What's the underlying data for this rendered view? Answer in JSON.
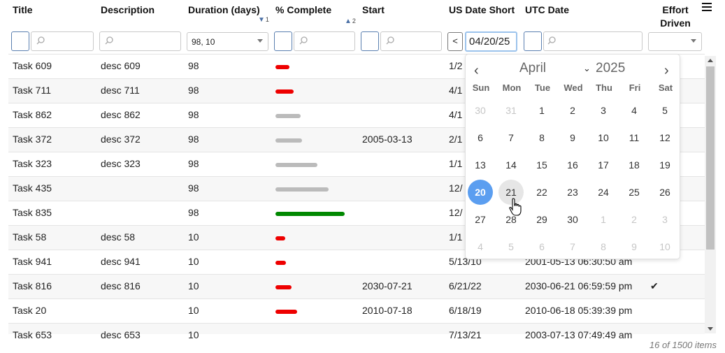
{
  "columns": [
    {
      "label": "Title"
    },
    {
      "label": "Description"
    },
    {
      "label": "Duration (days)"
    },
    {
      "label": "% Complete"
    },
    {
      "label": "Start"
    },
    {
      "label": "US Date Short"
    },
    {
      "label": "UTC Date"
    },
    {
      "label": "Effort Driven",
      "label_line1": "Effort",
      "label_line2": "Driven"
    }
  ],
  "sort": {
    "duration_index": "1",
    "complete_index": "2"
  },
  "filters": {
    "duration_value": "98, 10",
    "us_date_nav": "<",
    "us_date_value": "04/20/25"
  },
  "rows": [
    {
      "title": "Task 609",
      "desc": "desc 609",
      "duration": "98",
      "complete": 20,
      "complete_color": "#ee0000",
      "start": "",
      "us": "1/2",
      "utc": "",
      "effort": ""
    },
    {
      "title": "Task 711",
      "desc": "desc 711",
      "duration": "98",
      "complete": 26,
      "complete_color": "#ee0000",
      "start": "",
      "us": "4/1",
      "utc": "",
      "effort": ""
    },
    {
      "title": "Task 862",
      "desc": "desc 862",
      "duration": "98",
      "complete": 36,
      "complete_color": "#bbbbbb",
      "start": "",
      "us": "4/1",
      "utc": "",
      "effort": ""
    },
    {
      "title": "Task 372",
      "desc": "desc 372",
      "duration": "98",
      "complete": 38,
      "complete_color": "#bbbbbb",
      "start": "2005-03-13",
      "us": "2/1",
      "utc": "",
      "effort": ""
    },
    {
      "title": "Task 323",
      "desc": "desc 323",
      "duration": "98",
      "complete": 60,
      "complete_color": "#bbbbbb",
      "start": "",
      "us": "1/1",
      "utc": "",
      "effort": ""
    },
    {
      "title": "Task 435",
      "desc": "",
      "duration": "98",
      "complete": 76,
      "complete_color": "#bbbbbb",
      "start": "",
      "us": "12/",
      "utc": "",
      "effort": ""
    },
    {
      "title": "Task 835",
      "desc": "",
      "duration": "98",
      "complete": 99,
      "complete_color": "#008800",
      "start": "",
      "us": "12/",
      "utc": "",
      "effort": ""
    },
    {
      "title": "Task 58",
      "desc": "desc 58",
      "duration": "10",
      "complete": 14,
      "complete_color": "#ee0000",
      "start": "",
      "us": "1/1",
      "utc": "",
      "effort": ""
    },
    {
      "title": "Task 941",
      "desc": "desc 941",
      "duration": "10",
      "complete": 15,
      "complete_color": "#ee0000",
      "start": "",
      "us": "5/13/10",
      "utc": "2001-05-13 06:30:50 am",
      "effort": ""
    },
    {
      "title": "Task 816",
      "desc": "desc 816",
      "duration": "10",
      "complete": 23,
      "complete_color": "#ee0000",
      "start": "2030-07-21",
      "us": "6/21/22",
      "utc": "2030-06-21 06:59:59 pm",
      "effort": "✔"
    },
    {
      "title": "Task 20",
      "desc": "",
      "duration": "10",
      "complete": 31,
      "complete_color": "#ee0000",
      "start": "2010-07-18",
      "us": "6/18/19",
      "utc": "2010-06-18 05:39:39 pm",
      "effort": ""
    },
    {
      "title": "Task 653",
      "desc": "desc 653",
      "duration": "10",
      "complete": 0,
      "complete_color": "#ee0000",
      "start": "",
      "us": "7/13/21",
      "utc": "2003-07-13 07:49:49 am",
      "effort": ""
    }
  ],
  "footer": {
    "count_text": "16 of 1500 items"
  },
  "calendar": {
    "month": "April",
    "year": "2025",
    "prev": "‹",
    "next": "›",
    "dow": [
      "Sun",
      "Mon",
      "Tue",
      "Wed",
      "Thu",
      "Fri",
      "Sat"
    ],
    "weeks": [
      [
        "30",
        "31",
        "1",
        "2",
        "3",
        "4",
        "5"
      ],
      [
        "6",
        "7",
        "8",
        "9",
        "10",
        "11",
        "12"
      ],
      [
        "13",
        "14",
        "15",
        "16",
        "17",
        "18",
        "19"
      ],
      [
        "20",
        "21",
        "22",
        "23",
        "24",
        "25",
        "26"
      ],
      [
        "27",
        "28",
        "29",
        "30",
        "1",
        "2",
        "3"
      ],
      [
        "4",
        "5",
        "6",
        "7",
        "8",
        "9",
        "10"
      ]
    ],
    "selected": "20",
    "hovered": "21"
  },
  "icons": {
    "search": "search-icon",
    "menu": "hamburger-menu-icon",
    "check": "checkmark-icon"
  }
}
